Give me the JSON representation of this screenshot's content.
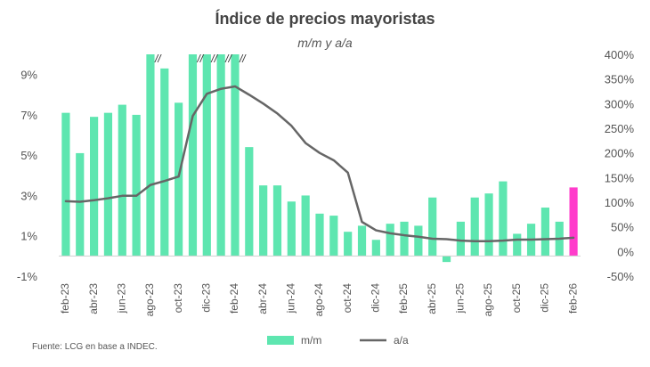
{
  "chart_data": {
    "type": "bar+line",
    "title": "Índice de precios mayoristas",
    "subtitle": "m/m y a/a",
    "source": "Fuente: LCG en base a INDEC.",
    "left_axis": {
      "min": -1,
      "max": 10,
      "ticks": [
        -1,
        1,
        3,
        5,
        7,
        9
      ],
      "tick_labels": [
        "-1%",
        "1%",
        "3%",
        "5%",
        "7%",
        "9%"
      ]
    },
    "right_axis": {
      "min": -50,
      "max": 400,
      "ticks": [
        -50,
        0,
        50,
        100,
        150,
        200,
        250,
        300,
        350,
        400
      ],
      "tick_labels": [
        "-50%",
        "0%",
        "50%",
        "100%",
        "150%",
        "200%",
        "250%",
        "300%",
        "350%",
        "400%"
      ]
    },
    "x_tick_labels": [
      "feb-23",
      "abr-23",
      "jun-23",
      "ago-23",
      "oct-23",
      "dic-23",
      "feb-24",
      "abr-24",
      "jun-24",
      "ago-24",
      "oct-24",
      "dic-24",
      "feb-25",
      "abr-25",
      "jun-25",
      "ago-25",
      "oct-25",
      "dic-25",
      "feb-26"
    ],
    "truncation_mark": "//",
    "truncated_categories": [
      "ago-23",
      "nov-23",
      "dic-23",
      "ene-24",
      "feb-24"
    ],
    "categories": [
      "feb-23",
      "mar-23",
      "abr-23",
      "may-23",
      "jun-23",
      "jul-23",
      "ago-23",
      "sep-23",
      "oct-23",
      "nov-23",
      "dic-23",
      "ene-24",
      "feb-24",
      "mar-24",
      "abr-24",
      "may-24",
      "jun-24",
      "jul-24",
      "ago-24",
      "sep-24",
      "oct-24",
      "nov-24",
      "dic-24",
      "ene-25",
      "feb-25",
      "mar-25",
      "abr-25",
      "may-25",
      "jun-25",
      "jul-25",
      "ago-25",
      "sep-25",
      "oct-25",
      "nov-25",
      "dic-25",
      "ene-26",
      "feb-26"
    ],
    "series": [
      {
        "name": "m/m",
        "kind": "bar",
        "axis": "left",
        "color": "#5EE6B0",
        "highlight_color": "#FF3CCB",
        "highlight_index": 36,
        "values": [
          7.1,
          5.1,
          6.9,
          7.1,
          7.5,
          7.0,
          10.0,
          9.3,
          7.6,
          10.0,
          10.0,
          10.0,
          10.0,
          5.4,
          3.5,
          3.5,
          2.7,
          3.0,
          2.1,
          2.0,
          1.2,
          1.5,
          0.8,
          1.6,
          1.7,
          1.5,
          2.9,
          -0.3,
          1.7,
          2.9,
          3.1,
          3.7,
          1.1,
          1.6,
          2.4,
          1.7,
          3.4
        ]
      },
      {
        "name": "a/a",
        "kind": "line",
        "axis": "right",
        "color": "#666666",
        "values": [
          102,
          101,
          104,
          108,
          113,
          113,
          135,
          143,
          152,
          275,
          320,
          330,
          335,
          318,
          300,
          280,
          255,
          220,
          200,
          185,
          160,
          60,
          43,
          37,
          33,
          30,
          26,
          25,
          22,
          21,
          21,
          22,
          24,
          24,
          25,
          26,
          28
        ]
      }
    ],
    "legend": {
      "position": "bottom",
      "items": [
        "m/m",
        "a/a"
      ]
    }
  }
}
